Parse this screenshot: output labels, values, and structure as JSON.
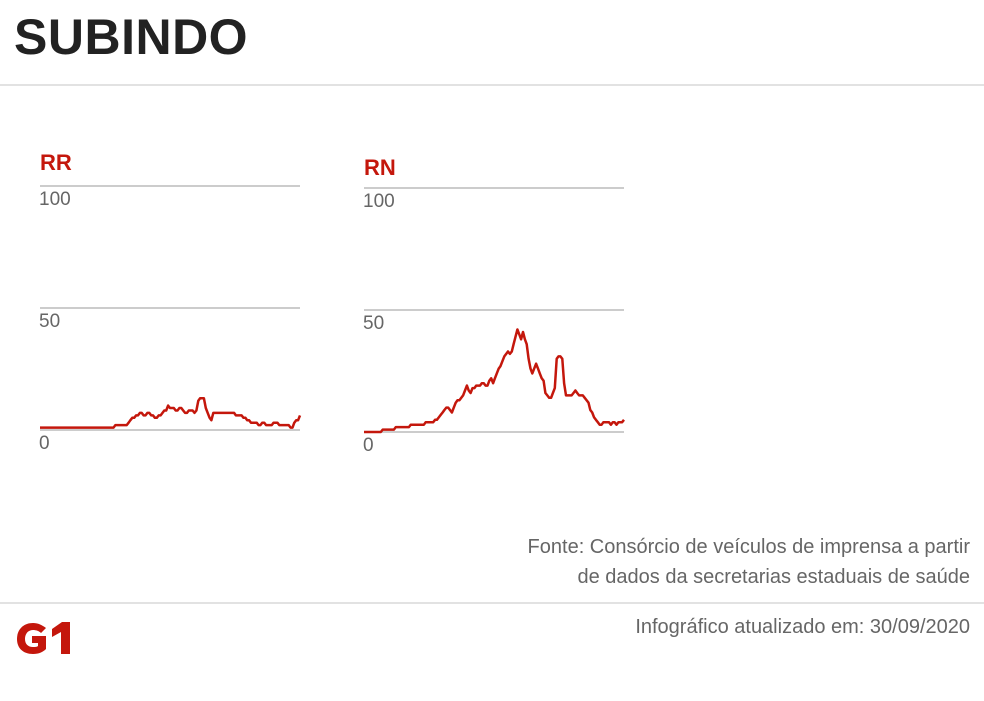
{
  "header": {
    "title": "SUBINDO"
  },
  "footer": {
    "source_line1": "Fonte: Consórcio de veículos de imprensa a partir",
    "source_line2": "de dados da secretarias estaduais de saúde",
    "updated": "Infográfico atualizado em: 30/09/2020",
    "logo_text": "G1"
  },
  "colors": {
    "series": "#c4170c",
    "title": "#222222",
    "grid": "#bbbbbb"
  },
  "chart_data": [
    {
      "type": "line",
      "title": "RR",
      "ylim": [
        0,
        100
      ],
      "yticks": [
        0,
        50,
        100
      ],
      "grid": true,
      "series": [
        {
          "values": [
            1,
            1,
            1,
            1,
            1,
            1,
            1,
            1,
            1,
            1,
            1,
            1,
            1,
            1,
            1,
            1,
            1,
            1,
            1,
            1,
            1,
            1,
            1,
            1,
            1,
            1,
            1,
            1,
            1,
            1,
            1,
            1,
            1,
            1,
            1,
            1,
            1,
            1,
            1,
            1,
            2,
            2,
            2,
            2,
            2,
            2,
            2,
            3,
            4,
            5,
            5,
            6,
            6,
            7,
            7,
            6,
            6,
            7,
            7,
            6,
            6,
            5,
            5,
            6,
            6,
            7,
            8,
            8,
            10,
            9,
            9,
            9,
            8,
            8,
            9,
            9,
            8,
            7,
            7,
            8,
            8,
            8,
            7,
            8,
            12,
            13,
            13,
            13,
            9,
            7,
            5,
            4,
            7,
            7,
            7,
            7,
            7,
            7,
            7,
            7,
            7,
            7,
            7,
            7,
            6,
            6,
            6,
            6,
            5,
            5,
            4,
            4,
            3,
            3,
            3,
            3,
            2,
            2,
            3,
            3,
            2,
            2,
            2,
            2,
            3,
            3,
            3,
            2,
            2,
            2,
            2,
            2,
            2,
            1,
            1,
            3,
            4,
            4,
            6
          ]
        }
      ]
    },
    {
      "type": "line",
      "title": "RN",
      "ylim": [
        0,
        100
      ],
      "yticks": [
        0,
        50,
        100
      ],
      "grid": true,
      "series": [
        {
          "values": [
            0,
            0,
            0,
            0,
            0,
            0,
            0,
            0,
            0,
            0,
            1,
            1,
            1,
            1,
            1,
            1,
            1,
            2,
            2,
            2,
            2,
            2,
            2,
            2,
            2,
            3,
            3,
            3,
            3,
            3,
            3,
            3,
            3,
            4,
            4,
            4,
            4,
            4,
            5,
            5,
            6,
            7,
            8,
            9,
            10,
            10,
            9,
            8,
            10,
            12,
            13,
            13,
            14,
            15,
            17,
            19,
            17,
            16,
            18,
            18,
            19,
            19,
            19,
            20,
            20,
            19,
            19,
            21,
            22,
            20,
            22,
            24,
            26,
            27,
            29,
            31,
            32,
            33,
            32,
            33,
            36,
            39,
            42,
            40,
            38,
            41,
            38,
            36,
            30,
            26,
            24,
            26,
            28,
            26,
            24,
            22,
            21,
            16,
            15,
            14,
            14,
            16,
            18,
            30,
            31,
            31,
            30,
            20,
            15,
            15,
            15,
            15,
            16,
            17,
            16,
            15,
            15,
            15,
            14,
            13,
            12,
            9,
            8,
            6,
            5,
            4,
            3,
            3,
            4,
            4,
            4,
            4,
            3,
            4,
            4,
            3,
            4,
            4,
            4,
            5
          ]
        }
      ]
    }
  ]
}
